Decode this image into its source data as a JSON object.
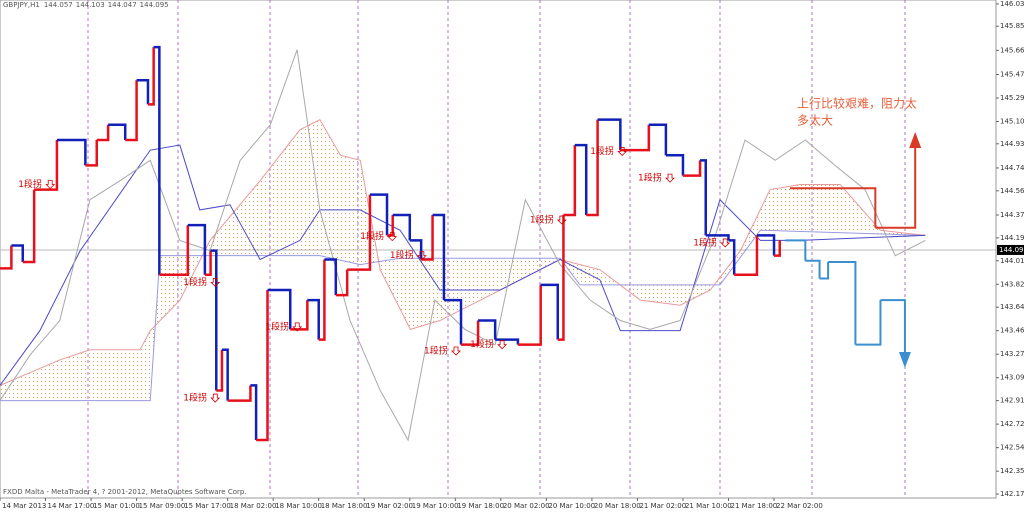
{
  "chart_data": {
    "type": "line",
    "symbol": "GBPJPY,H1",
    "ohlc": [
      144.057,
      144.103,
      144.047,
      144.095
    ],
    "last_price": 144.095,
    "footer": "FXDD Malta - MetaTrader 4, ? 2001-2012, MetaQuotes Software Corp.",
    "note_lines": [
      "上行比较艰难，阻力太",
      "多太大"
    ],
    "grid": false,
    "xlim": [
      0,
      175
    ],
    "ylim": [
      142.144,
      146.061
    ],
    "xticks": [
      {
        "value": 0,
        "label": "14 Mar 2013"
      },
      {
        "value": 8,
        "label": "14 Mar 17:00"
      },
      {
        "value": 16,
        "label": "15 Mar 01:00"
      },
      {
        "value": 24,
        "label": "15 Mar 09:00"
      },
      {
        "value": 32,
        "label": "15 Mar 17:00"
      },
      {
        "value": 40,
        "label": "18 Mar 02:00"
      },
      {
        "value": 48,
        "label": "18 Mar 10:00"
      },
      {
        "value": 56,
        "label": "18 Mar 18:00"
      },
      {
        "value": 64,
        "label": "19 Mar 02:00"
      },
      {
        "value": 72,
        "label": "19 Mar 10:00"
      },
      {
        "value": 80,
        "label": "19 Mar 18:00"
      },
      {
        "value": 88,
        "label": "20 Mar 02:00"
      },
      {
        "value": 96,
        "label": "20 Mar 10:00"
      },
      {
        "value": 104,
        "label": "20 Mar 18:00"
      },
      {
        "value": 112,
        "label": "21 Mar 02:00"
      },
      {
        "value": 120,
        "label": "21 Mar 10:00"
      },
      {
        "value": 128,
        "label": "21 Mar 18:00"
      },
      {
        "value": 136,
        "label": "22 Mar 02:00"
      }
    ],
    "yticks": [
      {
        "value": 146.03,
        "label": "146.030"
      },
      145.855,
      145.665,
      145.475,
      {
        "value": 145.29,
        "label": "145.290"
      },
      145.105,
      {
        "value": 144.93,
        "label": "144.930"
      },
      {
        "value": 144.74,
        "label": "144.740"
      },
      {
        "value": 144.56,
        "label": "144.560"
      },
      {
        "value": 144.37,
        "label": "144.370"
      },
      {
        "value": 144.19,
        "label": "144.190"
      },
      {
        "value": 144.01,
        "label": "144.010"
      },
      143.825,
      143.645,
      {
        "value": 143.46,
        "label": "143.460"
      },
      143.275,
      {
        "value": 143.09,
        "label": "143.090"
      },
      {
        "value": 142.91,
        "label": "142.910"
      },
      142.725,
      {
        "value": 142.54,
        "label": "142.540"
      },
      142.355,
      142.175
    ],
    "up_color": "#e8101c",
    "down_color": "#1020b8",
    "cloud_color": "#e8b070",
    "series": [
      {
        "name": "span_a",
        "style": "line",
        "color": "#e89a9a",
        "x": [
          0,
          10.5,
          15.8,
          24.6,
          26.4,
          31.6,
          36.9,
          45.7,
          52.7,
          56.2,
          59.8,
          63.3,
          66.8,
          72.1,
          77.3,
          84.4,
          91.4,
          98.4,
          105.4,
          112.5,
          119.5,
          124.8,
          130.1,
          135.3,
          140.6,
          147.6,
          154.7,
          162.6
        ],
        "values": [
          143.03,
          143.23,
          143.31,
          143.31,
          143.46,
          143.7,
          144.17,
          144.64,
          145.04,
          145.12,
          144.84,
          144.8,
          143.94,
          143.47,
          143.54,
          143.7,
          143.86,
          144.02,
          143.94,
          143.7,
          143.66,
          143.78,
          144.09,
          144.57,
          144.61,
          144.61,
          144.25,
          144.21
        ]
      },
      {
        "name": "span_b",
        "style": "line",
        "color": "#9a9ae0",
        "x": [
          0,
          26.4,
          28.1,
          38.7,
          56.2,
          63.3,
          70.3,
          98.4,
          101.9,
          126.5,
          133.6,
          162.6
        ],
        "values": [
          142.91,
          142.91,
          144.05,
          144.05,
          144.05,
          143.98,
          144.03,
          144.03,
          143.82,
          143.82,
          144.25,
          144.21
        ]
      },
      {
        "name": "kijun",
        "style": "line",
        "color": "#4a4ac8",
        "x": [
          0,
          7.0,
          14.1,
          26.4,
          31.6,
          35.1,
          40.4,
          45.7,
          52.7,
          56.2,
          63.3,
          70.3,
          77.3,
          87.9,
          98.4,
          105.4,
          109.0,
          119.5,
          126.5,
          133.6,
          140.6,
          162.6
        ],
        "values": [
          143.03,
          143.46,
          144.09,
          144.88,
          144.92,
          144.41,
          144.45,
          144.02,
          144.17,
          144.41,
          144.41,
          144.25,
          143.78,
          143.78,
          144.02,
          143.86,
          143.46,
          143.46,
          144.49,
          144.17,
          144.17,
          144.21
        ]
      },
      {
        "name": "chikou",
        "style": "line",
        "color": "#a8a8a8",
        "x": [
          0,
          5.3,
          10.5,
          15.8,
          21.1,
          26.4,
          31.6,
          36.9,
          42.2,
          47.5,
          52.2,
          56.2,
          61.5,
          66.8,
          71.7,
          76.4,
          81.7,
          87.0,
          92.3,
          98.4,
          103.7,
          109.0,
          114.2,
          119.5,
          125.7,
          130.9,
          136.2,
          141.5,
          146.7,
          152.0,
          157.3,
          162.6
        ],
        "values": [
          142.91,
          143.27,
          143.54,
          144.49,
          144.64,
          144.8,
          144.17,
          144.09,
          144.8,
          145.08,
          145.67,
          144.41,
          143.54,
          142.99,
          142.6,
          143.7,
          143.47,
          143.35,
          144.49,
          143.98,
          143.7,
          143.54,
          143.47,
          143.54,
          144.21,
          144.96,
          144.8,
          144.96,
          144.76,
          144.57,
          144.05,
          144.17
        ]
      },
      {
        "name": "price",
        "style": "step",
        "x": [
          0,
          2,
          4,
          6,
          10,
          15,
          17,
          19,
          22,
          24,
          26,
          27,
          28,
          33,
          36,
          37,
          38,
          39,
          40,
          44,
          45,
          47,
          51,
          54,
          56,
          57,
          59,
          61,
          65,
          68,
          69,
          72,
          74,
          76,
          78,
          81,
          84,
          87,
          91,
          95,
          98,
          99,
          101,
          103,
          105,
          109,
          114,
          117,
          120,
          123,
          124,
          128,
          129,
          133,
          136,
          137
        ],
        "values": [
          143.95,
          144.13,
          144.0,
          144.57,
          144.96,
          144.76,
          144.96,
          145.08,
          144.96,
          145.43,
          145.24,
          145.69,
          143.9,
          144.29,
          143.9,
          144.09,
          142.99,
          143.31,
          142.91,
          143.03,
          142.6,
          143.78,
          143.47,
          143.7,
          143.39,
          144.02,
          143.74,
          143.94,
          144.53,
          144.21,
          144.37,
          144.17,
          144.02,
          144.37,
          143.7,
          143.35,
          143.54,
          143.39,
          143.35,
          143.82,
          143.39,
          144.37,
          144.92,
          144.37,
          145.12,
          144.88,
          145.08,
          144.84,
          144.68,
          144.8,
          144.21,
          144.17,
          143.9,
          144.21,
          144.05,
          144.17
        ]
      },
      {
        "name": "projection_up",
        "style": "step",
        "color": "#d83a26",
        "arrow": true,
        "x": [
          138.8,
          153.8,
          160.8
        ],
        "values": [
          144.58,
          144.27,
          144.96
        ]
      },
      {
        "name": "projection_down",
        "style": "step",
        "color": "#3a8fd0",
        "arrow": true,
        "x": [
          138,
          141.5,
          144,
          145.5,
          150.3,
          154.7,
          159
        ],
        "values": [
          144.17,
          144.01,
          143.87,
          144.0,
          143.35,
          143.7,
          143.23
        ]
      }
    ],
    "annotations": [
      {
        "text": "1段拐",
        "x": 3.2,
        "y": 144.61
      },
      {
        "text": "1段拐",
        "x": 32.2,
        "y": 143.84
      },
      {
        "text": "1段拐",
        "x": 32.2,
        "y": 142.93
      },
      {
        "text": "1段拐",
        "x": 46.6,
        "y": 143.49
      },
      {
        "text": "1段拐",
        "x": 63.3,
        "y": 144.2
      },
      {
        "text": "1段拐",
        "x": 68.5,
        "y": 144.05
      },
      {
        "text": "1段拐",
        "x": 74.5,
        "y": 143.3
      },
      {
        "text": "1段拐",
        "x": 82.6,
        "y": 143.35
      },
      {
        "text": "1段拐",
        "x": 93.1,
        "y": 144.33
      },
      {
        "text": "1段拐",
        "x": 103.7,
        "y": 144.87
      },
      {
        "text": "1段拐",
        "x": 112.1,
        "y": 144.66
      },
      {
        "text": "1段拐",
        "x": 121.8,
        "y": 144.15
      }
    ]
  }
}
